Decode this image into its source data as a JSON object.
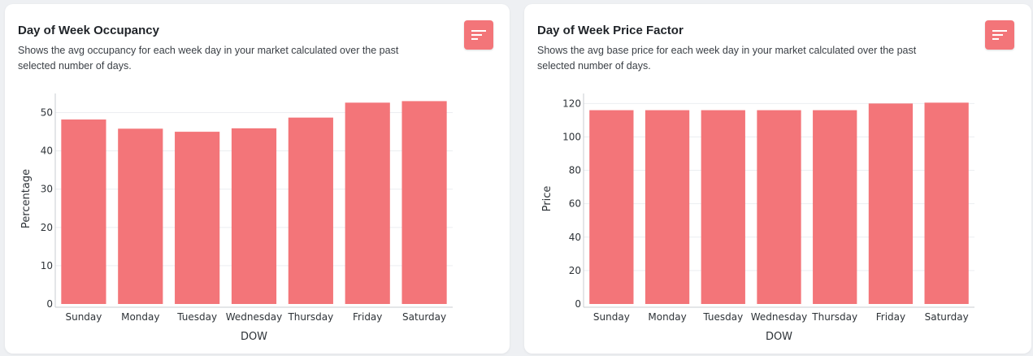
{
  "cards": [
    {
      "title": "Day of Week Occupancy",
      "subtitle": "Shows the avg occupancy for each week day in your market calculated over the past selected number of days."
    },
    {
      "title": "Day of Week Price Factor",
      "subtitle": "Shows the avg base price for each week day in your market calculated over the past selected number of days."
    }
  ],
  "colors": {
    "bar": "#f37579",
    "menu_button": "#f37579"
  },
  "icons": {
    "menu": "bars-sort-icon"
  },
  "chart_data": [
    {
      "type": "bar",
      "categories": [
        "Sunday",
        "Monday",
        "Tuesday",
        "Wednesday",
        "Thursday",
        "Friday",
        "Saturday"
      ],
      "values": [
        48.2,
        45.8,
        45.0,
        45.9,
        48.7,
        52.6,
        53.0
      ],
      "xlabel": "DOW",
      "ylabel": "Percentage",
      "ylim": [
        0,
        55
      ],
      "yticks": [
        0,
        10,
        20,
        30,
        40,
        50
      ],
      "grid": true
    },
    {
      "type": "bar",
      "categories": [
        "Sunday",
        "Monday",
        "Tuesday",
        "Wednesday",
        "Thursday",
        "Friday",
        "Saturday"
      ],
      "values": [
        116,
        116,
        116,
        116,
        116,
        120,
        120.5
      ],
      "xlabel": "DOW",
      "ylabel": "Price",
      "ylim": [
        0,
        126
      ],
      "yticks": [
        0,
        20,
        40,
        60,
        80,
        100,
        120
      ],
      "grid": true
    }
  ]
}
